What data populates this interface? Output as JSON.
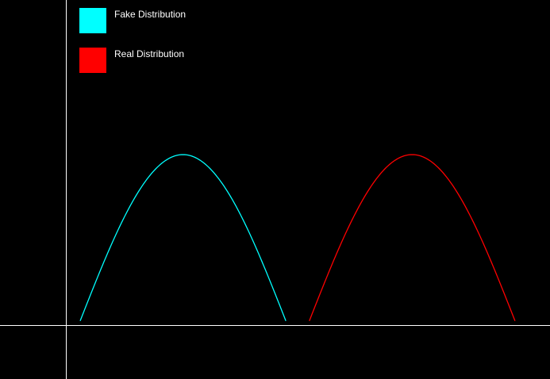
{
  "chart_data": {
    "type": "line",
    "title": "",
    "xlabel": "",
    "ylabel": "",
    "grid": false,
    "legend_position": "top-left",
    "x_range": [
      -0.5,
      6.6
    ],
    "y_range": [
      -0.04,
      1.3
    ],
    "series": [
      {
        "name": "Fake Distribution",
        "color": "#00ffff",
        "function": "sin",
        "x_start": 0,
        "x_end": 3.14159,
        "peak_x": 1.5708,
        "peak_y": 1.0
      },
      {
        "name": "Real Distribution",
        "color": "#ff0000",
        "function": "sin",
        "x_start": 3.5,
        "x_end": 6.64159,
        "peak_x": 5.0708,
        "peak_y": 1.0
      }
    ]
  },
  "colors": {
    "background": "#000000",
    "axes": "#ffffff",
    "legend_text": "#ffffff"
  }
}
